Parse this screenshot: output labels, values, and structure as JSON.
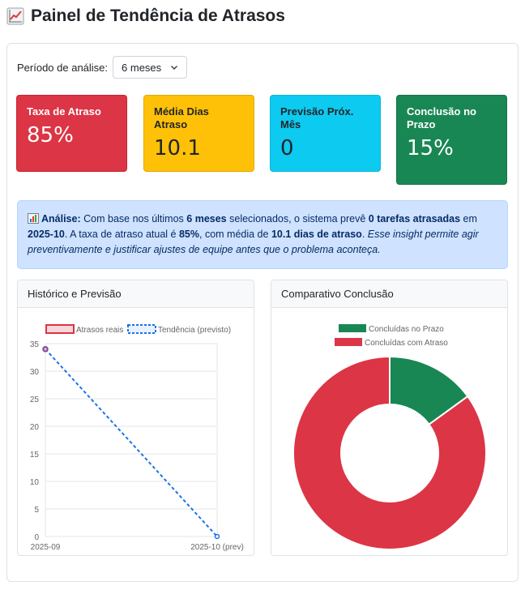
{
  "header": {
    "title": "Painel de Tendência de Atrasos",
    "icon": "chart-increasing-icon"
  },
  "filters": {
    "period_label": "Período de análise:",
    "period_value": "6 meses"
  },
  "kpis": [
    {
      "label": "Taxa de Atraso",
      "value": "85%",
      "color": "#dc3545"
    },
    {
      "label": "Média Dias Atraso",
      "value": "10.1",
      "color": "#ffc107"
    },
    {
      "label": "Previsão Próx. Mês",
      "value": "0",
      "color": "#0dcaf0"
    },
    {
      "label": "Conclusão no Prazo",
      "value": "15%",
      "color": "#198754"
    }
  ],
  "analysis": {
    "label": "Análise:",
    "t1": "Com base nos últimos",
    "period": "6 meses",
    "t2": "selecionados, o sistema prevê",
    "forecast": "0 tarefas atrasadas",
    "t3": "em",
    "month": "2025-10",
    "t4": ". A taxa de atraso atual é",
    "rate": "85%",
    "t5": ", com média de",
    "avg": "10.1 dias de atraso",
    "t6": ".",
    "insight": "Esse insight permite agir preventivamente e justificar ajustes de equipe antes que o problema aconteça."
  },
  "cards": {
    "history_title": "Histórico e Previsão",
    "compare_title": "Comparativo Conclusão"
  },
  "chart_data": [
    {
      "type": "line",
      "legend": [
        "Atrasos reais",
        "Tendência (previsto)"
      ],
      "categories": [
        "2025-09",
        "2025-10 (prev)"
      ],
      "series": [
        {
          "name": "Atrasos reais",
          "values": [
            34,
            null
          ],
          "color": "#dc3545"
        },
        {
          "name": "Tendência (previsto)",
          "values": [
            34,
            0
          ],
          "color": "#1a73e8"
        }
      ],
      "ylim": [
        0,
        35
      ],
      "yticks": [
        "0",
        "5",
        "10",
        "15",
        "20",
        "25",
        "30",
        "35"
      ],
      "legend_position": "top",
      "grid": true
    },
    {
      "type": "pie",
      "labels": [
        "Concluídas no Prazo",
        "Concluídas com Atraso"
      ],
      "values": [
        15,
        85
      ],
      "colors": [
        "#198754",
        "#dc3545"
      ],
      "legend_position": "top"
    }
  ]
}
